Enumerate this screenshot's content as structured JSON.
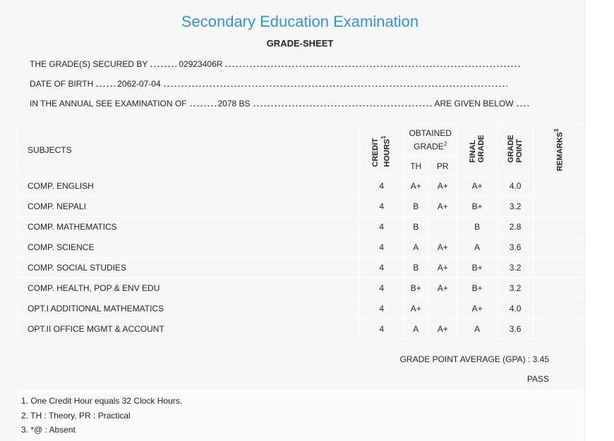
{
  "header": {
    "title": "Secondary Education Examination",
    "subtitle": "GRADE-SHEET"
  },
  "info": [
    {
      "label": "THE GRADE(S) SECURED BY",
      "value": "02923406R"
    },
    {
      "label": "DATE OF BIRTH",
      "value": "2062-07-04"
    },
    {
      "label": "IN THE ANNUAL SEE EXAMINATION OF",
      "value": "2078 BS",
      "suffix": "ARE GIVEN BELOW"
    }
  ],
  "table": {
    "headers": {
      "subjects": "SUBJECTS",
      "credit": {
        "text": "CREDIT HOURS",
        "note": "1"
      },
      "obtained": {
        "text": "OBTAINED GRADE",
        "note": "2"
      },
      "th": "TH",
      "pr": "PR",
      "final": "FINAL GRADE",
      "point": "GRADE POINT",
      "remarks": {
        "text": "REMARKS",
        "note": "3"
      }
    },
    "rows": [
      [
        "COMP. ENGLISH",
        "4",
        "A+",
        "A+",
        "A+",
        "4.0",
        null
      ],
      [
        "COMP. NEPALI",
        "4",
        "B",
        "A+",
        "B+",
        "3.2",
        null
      ],
      [
        "COMP. MATHEMATICS",
        "4",
        "B",
        null,
        "B",
        "2.8",
        null
      ],
      [
        "COMP. SCIENCE",
        "4",
        "A",
        "A+",
        "A",
        "3.6",
        null
      ],
      [
        "COMP. SOCIAL STUDIES",
        "4",
        "B",
        "A+",
        "B+",
        "3.2",
        null
      ],
      [
        "COMP. HEALTH, POP & ENV EDU",
        "4",
        "B+",
        "A+",
        "B+",
        "3.2",
        null
      ],
      [
        "OPT.I ADDITIONAL MATHEMATICS",
        "4",
        "A+",
        null,
        "A+",
        "4.0",
        null
      ],
      [
        "OPT.II OFFICE MGMT & ACCOUNT",
        "4",
        "A",
        "A+",
        "A",
        "3.6",
        null
      ]
    ]
  },
  "gpa": {
    "label": "GRADE POINT AVERAGE (GPA) :",
    "value": "3.45"
  },
  "result": "PASS",
  "footnotes": [
    "1. One Credit Hour equals 32 Clock Hours.",
    "2. TH : Theory, PR : Practical",
    "3. *@ : Absent"
  ]
}
